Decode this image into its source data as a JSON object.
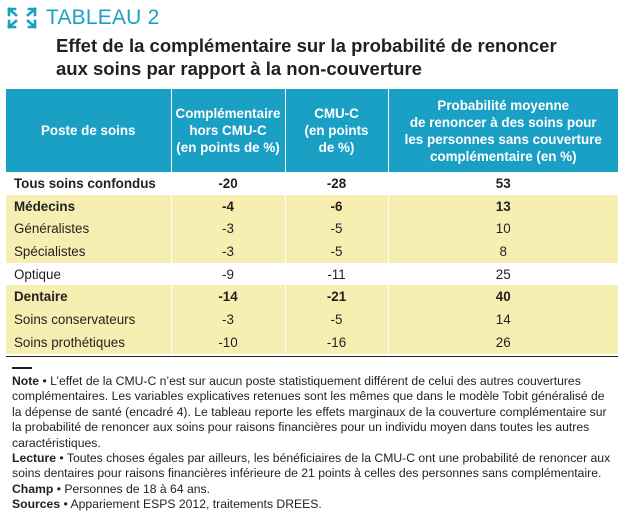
{
  "header": {
    "label": "TABLEAU 2",
    "title_line1": "Effet de la complémentaire sur la probabilité de renoncer",
    "title_line2": "aux soins par rapport à la non-couverture",
    "accent_color": "#1aa0c4",
    "icon": "expand-arrows-icon"
  },
  "table": {
    "columns": [
      {
        "lines": [
          "Poste de soins"
        ]
      },
      {
        "lines": [
          "Complémentaire",
          "hors CMU-C",
          "(en points de %)"
        ]
      },
      {
        "lines": [
          "CMU-C",
          "(en points",
          "de %)"
        ]
      },
      {
        "lines": [
          "Probabilité moyenne",
          "de renoncer à des soins pour",
          "les personnes sans couverture",
          "complémentaire (en %)"
        ]
      }
    ],
    "rows": [
      {
        "name": "Tous soins confondus",
        "comp": "-20",
        "cmuc": "-28",
        "prob": "53",
        "style": "bold",
        "bg": "white"
      },
      {
        "name": "Médecins",
        "comp": "-4",
        "cmuc": "-6",
        "prob": "13",
        "style": "bold",
        "bg": "yellow"
      },
      {
        "name": "Généralistes",
        "comp": "-3",
        "cmuc": "-5",
        "prob": "10",
        "style": "normal",
        "bg": "yellow"
      },
      {
        "name": "Spécialistes",
        "comp": "-3",
        "cmuc": "-5",
        "prob": "8",
        "style": "normal",
        "bg": "yellow"
      },
      {
        "name": "Optique",
        "comp": "-9",
        "cmuc": "-11",
        "prob": "25",
        "style": "normal",
        "bg": "white"
      },
      {
        "name": "Dentaire",
        "comp": "-14",
        "cmuc": "-21",
        "prob": "40",
        "style": "bold",
        "bg": "yellow"
      },
      {
        "name": "Soins conservateurs",
        "comp": "-3",
        "cmuc": "-5",
        "prob": "14",
        "style": "normal",
        "bg": "yellow"
      },
      {
        "name": "Soins prothétiques",
        "comp": "-10",
        "cmuc": "-16",
        "prob": "26",
        "style": "normal",
        "bg": "yellow"
      }
    ],
    "row_yellow_color": "#f7efb1"
  },
  "notes": [
    {
      "label": "Note",
      "text": " • L’effet de la CMU-C n’est sur aucun poste statistiquement différent de celui des autres couvertures complémentaires. Les variables explicatives retenues sont les mêmes que dans le modèle Tobit généralisé de la dépense de santé (encadré 4). Le tableau reporte les effets marginaux de la couverture complémentaire sur la probabilité de renoncer aux soins pour raisons financières pour un individu moyen dans toutes les autres caractéristiques."
    },
    {
      "label": "Lecture",
      "text": " • Toutes choses égales par ailleurs, les bénéficiaires de la CMU-C ont une probabilité de renoncer aux soins dentaires pour raisons financières inférieure de 21 points à celles des personnes sans complémentaire."
    },
    {
      "label": "Champ",
      "text": " • Personnes de 18 à 64 ans."
    },
    {
      "label": "Sources",
      "text": " • Appariement ESPS 2012, traitements DREES."
    }
  ]
}
